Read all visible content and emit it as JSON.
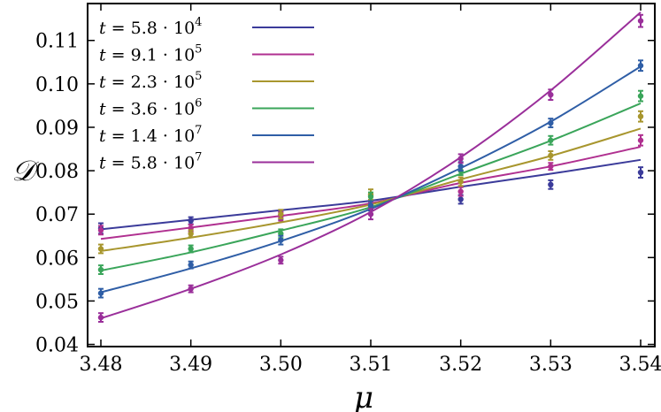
{
  "chart_data": {
    "type": "line",
    "xlabel": "μ",
    "ylabel": "𝒟",
    "xlim": [
      3.48,
      3.54
    ],
    "ylim": [
      0.0395,
      0.1185
    ],
    "xticks": [
      "3.48",
      "3.49",
      "3.50",
      "3.51",
      "3.52",
      "3.53",
      "3.54"
    ],
    "xtick_values": [
      3.48,
      3.49,
      3.5,
      3.51,
      3.52,
      3.53,
      3.54
    ],
    "yticks": [
      "0.04",
      "0.05",
      "0.06",
      "0.07",
      "0.08",
      "0.09",
      "0.10",
      "0.11"
    ],
    "ytick_values": [
      0.04,
      0.05,
      0.06,
      0.07,
      0.08,
      0.09,
      0.1,
      0.11
    ],
    "legend_position": "top-left",
    "x": [
      3.48,
      3.49,
      3.5,
      3.51,
      3.52,
      3.53,
      3.54
    ],
    "series": [
      {
        "name": "t = 5.8 · 10^4",
        "legend_base": "5.8",
        "legend_exp": "4",
        "color": "#3b3b9a",
        "fit": [
          0.0665,
          0.0687,
          0.0709,
          0.0731,
          0.0763,
          0.0793,
          0.0825
        ],
        "values": [
          0.0667,
          0.0685,
          0.0697,
          0.0718,
          0.0734,
          0.0768,
          0.0796
        ],
        "errors": [
          0.0012,
          0.0008,
          0.0008,
          0.001,
          0.001,
          0.001,
          0.0012
        ]
      },
      {
        "name": "t = 9.1 · 10^5",
        "legend_base": "9.1",
        "legend_exp": "5",
        "color": "#b03090",
        "fit": [
          0.0643,
          0.0669,
          0.0696,
          0.0725,
          0.0772,
          0.081,
          0.0855
        ],
        "values": [
          0.0663,
          0.0668,
          0.0695,
          0.073,
          0.0752,
          0.081,
          0.087
        ],
        "errors": [
          0.001,
          0.0008,
          0.001,
          0.0012,
          0.001,
          0.0008,
          0.0012
        ]
      },
      {
        "name": "t = 2.3 · 10^5",
        "legend_base": "2.3",
        "legend_exp": "5",
        "color": "#a8962e",
        "fit": [
          0.0615,
          0.0646,
          0.0681,
          0.0722,
          0.078,
          0.0834,
          0.0897
        ],
        "values": [
          0.062,
          0.0655,
          0.07,
          0.0745,
          0.0775,
          0.0835,
          0.0925
        ],
        "errors": [
          0.001,
          0.0008,
          0.001,
          0.0012,
          0.001,
          0.001,
          0.0012
        ]
      },
      {
        "name": "t = 3.6 · 10^6",
        "legend_base": "3.6",
        "legend_exp": "6",
        "color": "#3aa55a",
        "fit": [
          0.057,
          0.0612,
          0.0662,
          0.0716,
          0.0793,
          0.0869,
          0.0955
        ],
        "values": [
          0.0572,
          0.062,
          0.0655,
          0.074,
          0.08,
          0.087,
          0.0972
        ],
        "errors": [
          0.001,
          0.0008,
          0.001,
          0.001,
          0.001,
          0.001,
          0.0012
        ]
      },
      {
        "name": "t = 1.4 · 10^7",
        "legend_base": "1.4",
        "legend_exp": "7",
        "color": "#2f5ea6",
        "fit": [
          0.052,
          0.0575,
          0.0638,
          0.0712,
          0.0806,
          0.0913,
          0.104
        ],
        "values": [
          0.0518,
          0.0583,
          0.064,
          0.072,
          0.081,
          0.091,
          0.1042
        ],
        "errors": [
          0.001,
          0.0008,
          0.001,
          0.001,
          0.001,
          0.001,
          0.0012
        ]
      },
      {
        "name": "t = 5.8 · 10^7",
        "legend_base": "5.8",
        "legend_exp": "7",
        "color": "#9a2f9a",
        "fit": [
          0.046,
          0.0528,
          0.0607,
          0.0705,
          0.0831,
          0.0985,
          0.1165
        ],
        "values": [
          0.0462,
          0.0528,
          0.0594,
          0.07,
          0.0828,
          0.0975,
          0.1145
        ],
        "errors": [
          0.001,
          0.0008,
          0.0008,
          0.0012,
          0.001,
          0.0012,
          0.0014
        ]
      }
    ]
  }
}
